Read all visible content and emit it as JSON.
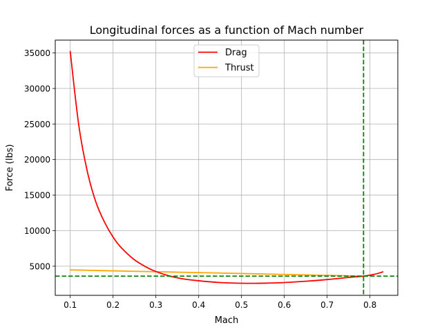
{
  "chart_data": {
    "type": "line",
    "title": "Longitudinal forces as a function of Mach number",
    "xlabel": "Mach",
    "ylabel": "Force (lbs)",
    "xlim": [
      0.065,
      0.865
    ],
    "ylim": [
      900,
      36800
    ],
    "grid": true,
    "legend_position": "top-center",
    "x_ticks": [
      0.1,
      0.2,
      0.3,
      0.4,
      0.5,
      0.6,
      0.7,
      0.8
    ],
    "x_tick_labels": [
      "0.1",
      "0.2",
      "0.3",
      "0.4",
      "0.5",
      "0.6",
      "0.7",
      "0.8"
    ],
    "y_ticks": [
      5000,
      10000,
      15000,
      20000,
      25000,
      30000,
      35000
    ],
    "y_tick_labels": [
      "5000",
      "10000",
      "15000",
      "20000",
      "25000",
      "30000",
      "35000"
    ],
    "series": [
      {
        "name": "Drag",
        "color": "#ff0000",
        "x": [
          0.1,
          0.12,
          0.14,
          0.16,
          0.18,
          0.2,
          0.22,
          0.25,
          0.28,
          0.3,
          0.33,
          0.36,
          0.4,
          0.45,
          0.5,
          0.53,
          0.56,
          0.6,
          0.65,
          0.7,
          0.75,
          0.785,
          0.81,
          0.83
        ],
        "values": [
          35200,
          24800,
          18300,
          14000,
          11200,
          9100,
          7550,
          5900,
          4800,
          4250,
          3650,
          3250,
          2950,
          2700,
          2600,
          2590,
          2620,
          2700,
          2880,
          3120,
          3420,
          3600,
          3850,
          4200
        ]
      },
      {
        "name": "Thrust",
        "color": "#ffa500",
        "x": [
          0.1,
          0.2,
          0.3,
          0.4,
          0.5,
          0.6,
          0.7,
          0.785
        ],
        "values": [
          4480,
          4350,
          4220,
          4100,
          3970,
          3840,
          3710,
          3600
        ]
      }
    ],
    "reference_lines": [
      {
        "orientation": "vertical",
        "value": 0.785,
        "color": "#008000",
        "style": "dashed"
      },
      {
        "orientation": "horizontal",
        "value": 3600,
        "color": "#008000",
        "style": "dashed"
      }
    ]
  }
}
